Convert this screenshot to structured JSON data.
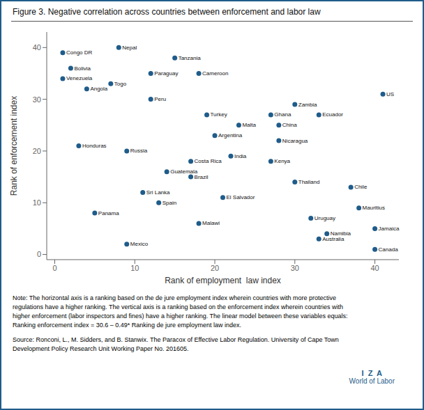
{
  "chart_data": {
    "type": "scatter",
    "title": "Figure 3. Negative correlation across countries between enforcement and labor law",
    "x_label": "Rank of employment  law index",
    "y_label": "Rank of enforcement index",
    "color": "#1f5c8b",
    "grid": false,
    "xlim": [
      -1,
      43
    ],
    "ylim": [
      -1,
      43
    ],
    "xticks": [
      0,
      10,
      20,
      30,
      40
    ],
    "yticks": [
      0,
      10,
      20,
      30,
      40
    ],
    "labels": [
      "Congo DR",
      "Nepal",
      "Bolivia",
      "Venezuela",
      "Angola",
      "Togo",
      "Paraguay",
      "Tanzania",
      "Cameroon",
      "Peru",
      "Honduras",
      "Russia",
      "Turkey",
      "Malta",
      "Argentina",
      "Ghana",
      "China",
      "Nicaragua",
      "Zambia",
      "Ecuador",
      "US",
      "Guatemala",
      "Costa Rica",
      "India",
      "Kenya",
      "Brazil",
      "Thailand",
      "Chile",
      "Sri Lanka",
      "Spain",
      "El Salvador",
      "Mauritius",
      "Panama",
      "Malawi",
      "Uruguay",
      "Jamaica",
      "Mexico",
      "Namibia",
      "Australia",
      "Canada"
    ],
    "x": [
      1,
      8,
      2,
      1,
      4,
      7,
      12,
      15,
      18,
      12,
      3,
      9,
      19,
      23,
      20,
      27,
      28,
      28,
      30,
      33,
      41,
      14,
      17,
      22,
      27,
      17,
      30,
      37,
      11,
      13,
      21,
      38,
      5,
      18,
      32,
      40,
      9,
      34,
      33,
      40
    ],
    "values": [
      39,
      40,
      36,
      34,
      32,
      33,
      35,
      38,
      35,
      30,
      21,
      20,
      27,
      25,
      23,
      27,
      25,
      22,
      29,
      27,
      31,
      16,
      18,
      19,
      18,
      15,
      14,
      13,
      12,
      10,
      11,
      9,
      8,
      6,
      7,
      5,
      2,
      4,
      3,
      1
    ],
    "annotations": [
      "Note: The horizontal axis is a ranking based on the de jure employment index wherein countries with more protective\nregulations have a higher ranking. The vertical axis is a ranking based on the enforcement index wherein countries with\nhigher enforcement (labor inspectors and fines) have a higher ranking. The linear model between these variables equals:\nRanking enforcement index = 30.6 – 0.49* Ranking de jure employment law index.",
      "Source: Ronconi, L., M. Sidders, and B. Stanwix. The Paracox of Effective Labor Regulation. University of Cape Town\nDevelopment Policy Research Unit Working Paper No. 201605.",
      "I  Z  A",
      "World of Labor"
    ]
  }
}
